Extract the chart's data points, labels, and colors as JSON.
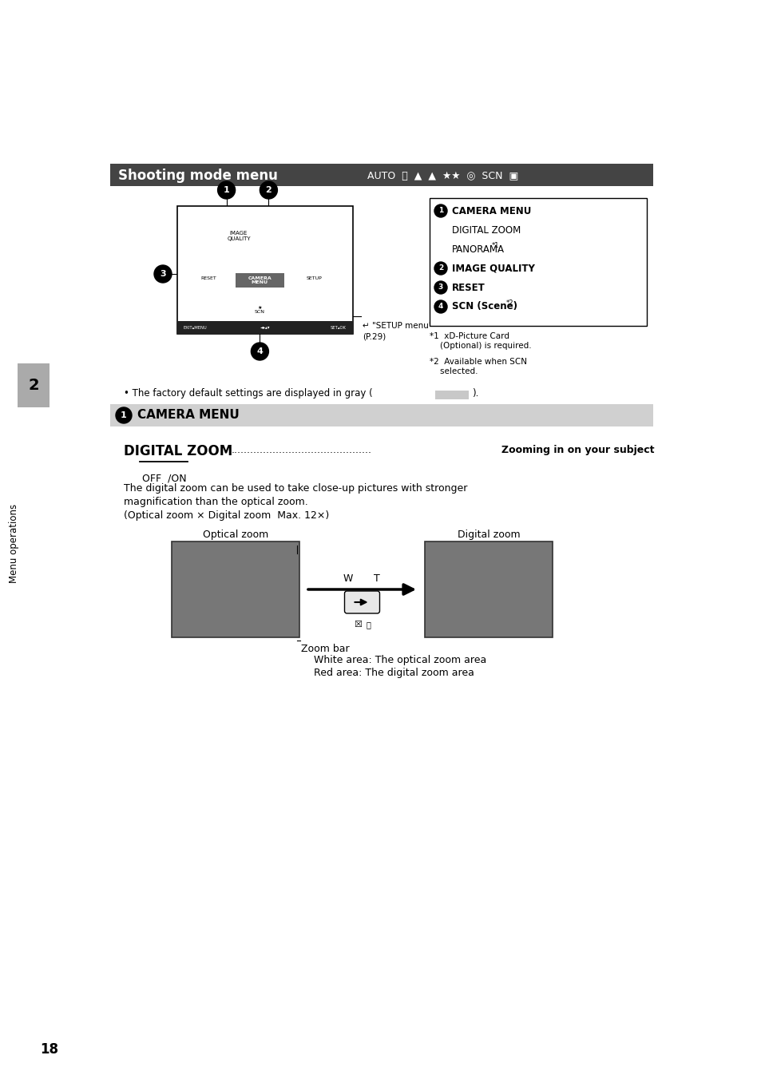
{
  "page_bg": "#ffffff",
  "page_number": "18",
  "sidebar_text": "Menu operations",
  "sidebar_number": "2",
  "sidebar_color": "#aaaaaa",
  "section_header_bg": "#444444",
  "section_header_text": "Shooting mode menu",
  "menu_legend_items": [
    {
      "circle": true,
      "num": "1",
      "text": "CAMERA MENU",
      "bold": true
    },
    {
      "circle": false,
      "num": "",
      "text": "DIGITAL ZOOM",
      "bold": false
    },
    {
      "circle": false,
      "num": "",
      "text": "PANORAMA",
      "bold": false,
      "super": "*1"
    },
    {
      "circle": true,
      "num": "2",
      "text": "IMAGE QUALITY",
      "bold": true
    },
    {
      "circle": true,
      "num": "3",
      "text": "RESET",
      "bold": true
    },
    {
      "circle": true,
      "num": "4",
      "text": "SCN (Scene)",
      "bold": true,
      "super": "*2"
    }
  ],
  "footnote1": "*1  xD-Picture Card\n    (Optional) is required.",
  "footnote2": "*2  Available when SCN\n    selected.",
  "factory_text": "• The factory default settings are displayed in gray (",
  "factory_swatch_color": "#c8c8c8",
  "camera_menu_bg": "#d0d0d0",
  "digital_zoom_title": "DIGITAL ZOOM",
  "digital_zoom_subtitle": "Zooming in on your subject",
  "off_on_text": "OFF  /ON",
  "body_lines": [
    "The digital zoom can be used to take close-up pictures with stronger",
    "magnification than the optical zoom.",
    "(Optical zoom × Digital zoom  Max. 12×)"
  ],
  "optical_zoom_label": "Optical zoom",
  "digital_zoom_label": "Digital zoom",
  "zoom_bar_label": "Zoom bar",
  "white_area_label": "White area: The optical zoom area",
  "red_area_label": "Red area: The digital zoom area"
}
